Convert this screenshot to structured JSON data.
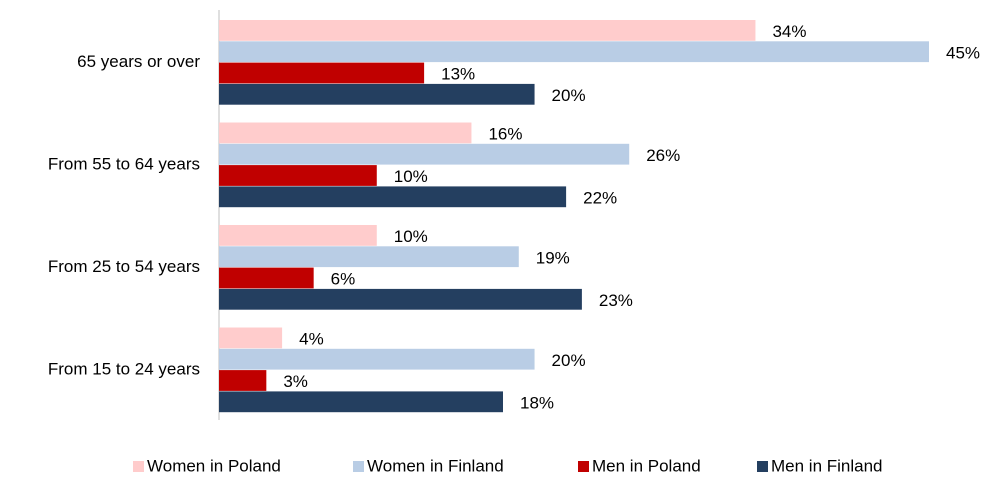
{
  "chart_data": {
    "type": "hbar",
    "categories": [
      "65 years or over",
      "From 55 to 64 years",
      "From 25 to 54 years",
      "From 15 to 24 years"
    ],
    "series": [
      {
        "name": "Women in Poland",
        "color": "#ffcccc",
        "values": [
          34,
          16,
          10,
          4
        ],
        "value_labels": [
          "34%",
          "16%",
          "10%",
          "4%"
        ]
      },
      {
        "name": "Women in Finland",
        "color": "#b9cde5",
        "values": [
          45,
          26,
          19,
          20
        ],
        "value_labels": [
          "45%",
          "26%",
          "19%",
          "20%"
        ]
      },
      {
        "name": "Men in Poland",
        "color": "#c00000",
        "values": [
          13,
          10,
          6,
          3
        ],
        "value_labels": [
          "13%",
          "10%",
          "6%",
          "3%"
        ]
      },
      {
        "name": "Men in Finland",
        "color": "#243f60",
        "values": [
          20,
          22,
          23,
          18
        ],
        "value_labels": [
          "20%",
          "22%",
          "23%",
          "18%"
        ]
      }
    ],
    "legend": "bottom"
  }
}
